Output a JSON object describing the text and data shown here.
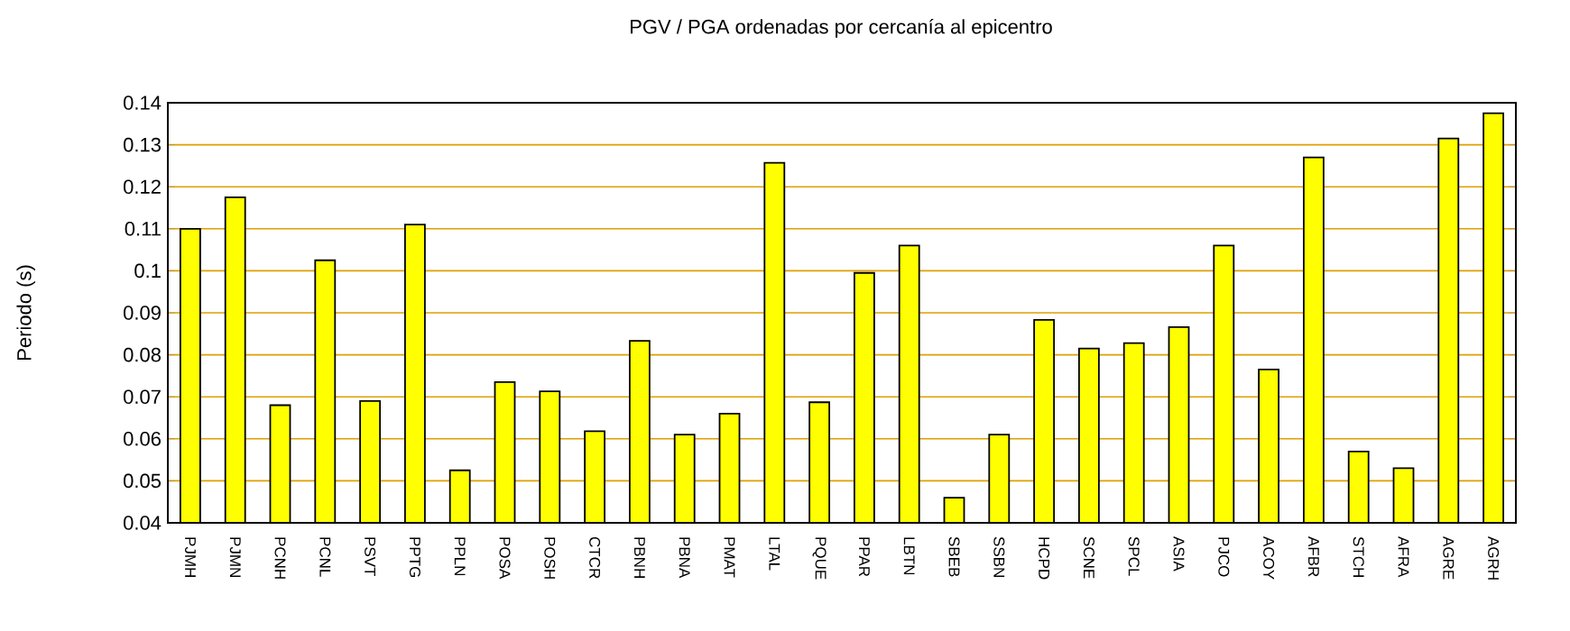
{
  "chart_data": {
    "type": "bar",
    "title": "PGV / PGA ordenadas por cercanía al epicentro",
    "ylabel": "Periodo (s)",
    "categories": [
      "PJMH",
      "PJMN",
      "PCNH",
      "PCNL",
      "PSVT",
      "PPTG",
      "PPLN",
      "POSA",
      "POSH",
      "CTCR",
      "PBNH",
      "PBNA",
      "PMAT",
      "LTAL",
      "PQUE",
      "PPAR",
      "LBTN",
      "SBEB",
      "SSBN",
      "HCPD",
      "SCNE",
      "SPCL",
      "ASIA",
      "PJCO",
      "ACOY",
      "AFBR",
      "STCH",
      "AFRA",
      "AGRE",
      "AGRH"
    ],
    "values": [
      0.11,
      0.1175,
      0.068,
      0.1025,
      0.069,
      0.111,
      0.0525,
      0.0735,
      0.0713,
      0.0618,
      0.0833,
      0.061,
      0.066,
      0.1257,
      0.0687,
      0.0995,
      0.106,
      0.046,
      0.061,
      0.0883,
      0.0815,
      0.0828,
      0.0866,
      0.106,
      0.0765,
      0.127,
      0.057,
      0.053,
      0.1315,
      0.1375
    ],
    "color": "#ffff00",
    "ylim": [
      0.04,
      0.14
    ],
    "yticks": [
      0.04,
      0.05,
      0.06,
      0.07,
      0.08,
      0.09,
      0.1,
      0.11,
      0.12,
      0.13,
      0.14
    ],
    "grid": "y"
  }
}
